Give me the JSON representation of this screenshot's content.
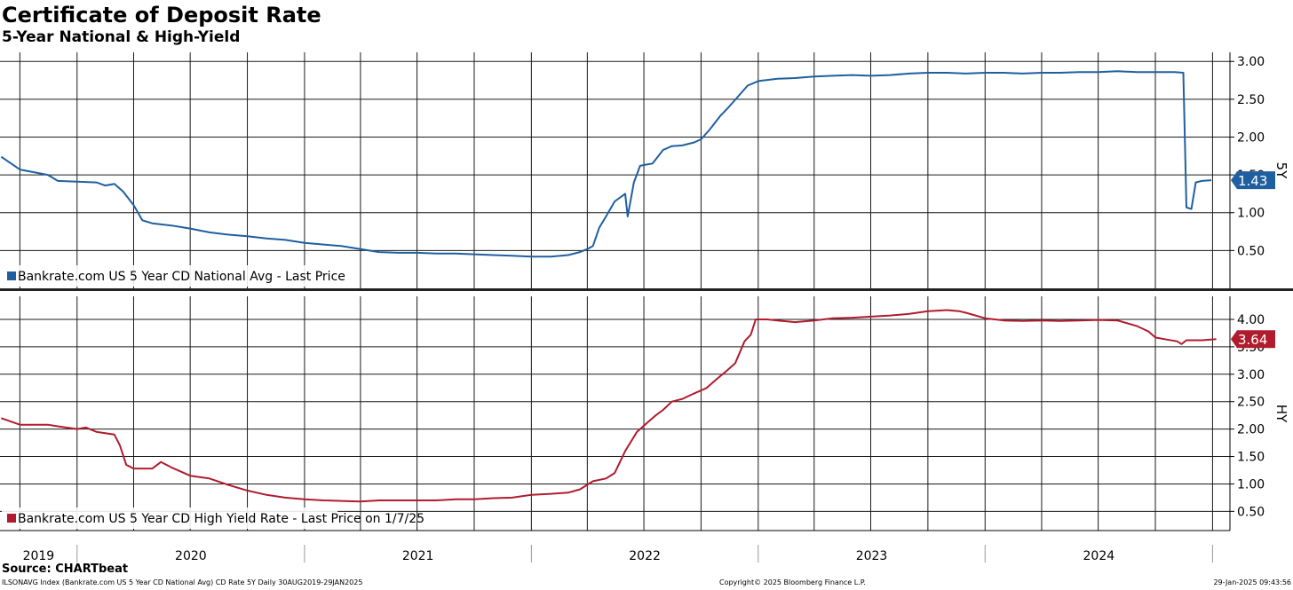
{
  "header": {
    "title": "Certificate of Deposit Rate",
    "subtitle": "5-Year National & High-Yield"
  },
  "footer": {
    "source": "Source: CHARTbeat",
    "index_info": "ILSONAVG Index (Bankrate.com US 5 Year CD National Avg) CD Rate 5Y  Daily 30AUG2019-29JAN2025",
    "copyright": "Copyright© 2025 Bloomberg Finance L.P.",
    "timestamp": "29-Jan-2025 09:43:56"
  },
  "chart_data": [
    {
      "type": "line",
      "panel": "5Y",
      "axis_side_label": "5Y",
      "color": "#1f5fa0",
      "series": [
        {
          "name": "Bankrate.com US 5 Year CD National Avg - Last Price",
          "last_value_label": "1.43",
          "points": [
            [
              "2019-09-01",
              1.74
            ],
            [
              "2019-10-01",
              1.57
            ],
            [
              "2019-11-15",
              1.5
            ],
            [
              "2019-12-01",
              1.42
            ],
            [
              "2020-01-01",
              1.41
            ],
            [
              "2020-02-01",
              1.4
            ],
            [
              "2020-02-15",
              1.36
            ],
            [
              "2020-03-01",
              1.38
            ],
            [
              "2020-03-15",
              1.28
            ],
            [
              "2020-04-01",
              1.1
            ],
            [
              "2020-04-15",
              0.9
            ],
            [
              "2020-05-01",
              0.86
            ],
            [
              "2020-06-01",
              0.83
            ],
            [
              "2020-07-01",
              0.79
            ],
            [
              "2020-08-01",
              0.74
            ],
            [
              "2020-09-01",
              0.71
            ],
            [
              "2020-10-01",
              0.69
            ],
            [
              "2020-11-01",
              0.66
            ],
            [
              "2020-12-01",
              0.64
            ],
            [
              "2021-01-01",
              0.6
            ],
            [
              "2021-02-01",
              0.58
            ],
            [
              "2021-03-01",
              0.56
            ],
            [
              "2021-04-01",
              0.52
            ],
            [
              "2021-05-01",
              0.48
            ],
            [
              "2021-06-01",
              0.47
            ],
            [
              "2021-07-01",
              0.47
            ],
            [
              "2021-08-01",
              0.46
            ],
            [
              "2021-09-01",
              0.46
            ],
            [
              "2021-10-01",
              0.45
            ],
            [
              "2021-11-01",
              0.44
            ],
            [
              "2021-12-01",
              0.43
            ],
            [
              "2022-01-01",
              0.42
            ],
            [
              "2022-02-01",
              0.42
            ],
            [
              "2022-03-01",
              0.44
            ],
            [
              "2022-03-20",
              0.48
            ],
            [
              "2022-04-01",
              0.52
            ],
            [
              "2022-04-10",
              0.56
            ],
            [
              "2022-04-20",
              0.8
            ],
            [
              "2022-05-01",
              0.95
            ],
            [
              "2022-05-15",
              1.15
            ],
            [
              "2022-06-01",
              1.25
            ],
            [
              "2022-06-05",
              0.95
            ],
            [
              "2022-06-15",
              1.4
            ],
            [
              "2022-06-25",
              1.62
            ],
            [
              "2022-07-01",
              1.63
            ],
            [
              "2022-07-15",
              1.65
            ],
            [
              "2022-08-01",
              1.83
            ],
            [
              "2022-08-15",
              1.88
            ],
            [
              "2022-09-01",
              1.89
            ],
            [
              "2022-09-20",
              1.93
            ],
            [
              "2022-10-01",
              1.97
            ],
            [
              "2022-10-15",
              2.1
            ],
            [
              "2022-11-01",
              2.28
            ],
            [
              "2022-11-15",
              2.4
            ],
            [
              "2022-12-01",
              2.55
            ],
            [
              "2022-12-15",
              2.68
            ],
            [
              "2023-01-01",
              2.74
            ],
            [
              "2023-02-01",
              2.77
            ],
            [
              "2023-03-01",
              2.78
            ],
            [
              "2023-04-01",
              2.8
            ],
            [
              "2023-05-01",
              2.81
            ],
            [
              "2023-06-01",
              2.82
            ],
            [
              "2023-07-01",
              2.81
            ],
            [
              "2023-08-01",
              2.82
            ],
            [
              "2023-09-01",
              2.84
            ],
            [
              "2023-10-01",
              2.85
            ],
            [
              "2023-11-01",
              2.85
            ],
            [
              "2023-12-01",
              2.84
            ],
            [
              "2024-01-01",
              2.85
            ],
            [
              "2024-02-01",
              2.85
            ],
            [
              "2024-03-01",
              2.84
            ],
            [
              "2024-04-01",
              2.85
            ],
            [
              "2024-05-01",
              2.85
            ],
            [
              "2024-06-01",
              2.86
            ],
            [
              "2024-07-01",
              2.86
            ],
            [
              "2024-08-01",
              2.87
            ],
            [
              "2024-09-01",
              2.86
            ],
            [
              "2024-10-01",
              2.86
            ],
            [
              "2024-11-01",
              2.86
            ],
            [
              "2024-11-15",
              2.85
            ],
            [
              "2024-11-20",
              1.07
            ],
            [
              "2024-11-28",
              1.05
            ],
            [
              "2024-12-05",
              1.4
            ],
            [
              "2024-12-15",
              1.42
            ],
            [
              "2024-12-30",
              1.43
            ]
          ]
        }
      ],
      "ylim": [
        0,
        3.12
      ],
      "yticks": [
        "3.00",
        "2.50",
        "2.00",
        "1.50",
        "1.00",
        "0.50"
      ],
      "grid": true,
      "legend": "bottom-left"
    },
    {
      "type": "line",
      "panel": "HY",
      "axis_side_label": "HY",
      "color": "#b01c2e",
      "series": [
        {
          "name": "Bankrate.com US 5 Year CD High Yield Rate - Last Price on 1/7/25",
          "last_value_label": "3.64",
          "points": [
            [
              "2019-09-01",
              2.2
            ],
            [
              "2019-10-01",
              2.08
            ],
            [
              "2019-11-15",
              2.08
            ],
            [
              "2019-12-01",
              2.05
            ],
            [
              "2020-01-01",
              2.0
            ],
            [
              "2020-01-15",
              2.03
            ],
            [
              "2020-02-01",
              1.95
            ],
            [
              "2020-03-01",
              1.9
            ],
            [
              "2020-03-10",
              1.7
            ],
            [
              "2020-03-20",
              1.35
            ],
            [
              "2020-04-01",
              1.28
            ],
            [
              "2020-05-01",
              1.28
            ],
            [
              "2020-05-15",
              1.4
            ],
            [
              "2020-06-01",
              1.3
            ],
            [
              "2020-07-01",
              1.15
            ],
            [
              "2020-08-01",
              1.1
            ],
            [
              "2020-09-01",
              0.98
            ],
            [
              "2020-10-01",
              0.88
            ],
            [
              "2020-11-01",
              0.8
            ],
            [
              "2020-12-01",
              0.75
            ],
            [
              "2021-01-01",
              0.72
            ],
            [
              "2021-02-01",
              0.7
            ],
            [
              "2021-03-01",
              0.69
            ],
            [
              "2021-04-01",
              0.68
            ],
            [
              "2021-05-01",
              0.7
            ],
            [
              "2021-06-01",
              0.7
            ],
            [
              "2021-07-01",
              0.7
            ],
            [
              "2021-08-01",
              0.7
            ],
            [
              "2021-09-01",
              0.72
            ],
            [
              "2021-10-01",
              0.72
            ],
            [
              "2021-11-01",
              0.74
            ],
            [
              "2021-12-01",
              0.75
            ],
            [
              "2022-01-01",
              0.8
            ],
            [
              "2022-02-01",
              0.82
            ],
            [
              "2022-03-01",
              0.84
            ],
            [
              "2022-03-20",
              0.9
            ],
            [
              "2022-04-10",
              1.05
            ],
            [
              "2022-05-01",
              1.1
            ],
            [
              "2022-05-15",
              1.2
            ],
            [
              "2022-06-01",
              1.6
            ],
            [
              "2022-06-20",
              1.95
            ],
            [
              "2022-07-05",
              2.1
            ],
            [
              "2022-07-20",
              2.25
            ],
            [
              "2022-08-01",
              2.35
            ],
            [
              "2022-08-15",
              2.5
            ],
            [
              "2022-09-01",
              2.55
            ],
            [
              "2022-09-20",
              2.65
            ],
            [
              "2022-10-10",
              2.75
            ],
            [
              "2022-10-25",
              2.9
            ],
            [
              "2022-11-10",
              3.05
            ],
            [
              "2022-11-25",
              3.2
            ],
            [
              "2022-12-10",
              3.6
            ],
            [
              "2022-12-20",
              3.72
            ],
            [
              "2022-12-28",
              4.0
            ],
            [
              "2023-01-15",
              4.0
            ],
            [
              "2023-02-01",
              3.98
            ],
            [
              "2023-03-01",
              3.95
            ],
            [
              "2023-04-01",
              3.98
            ],
            [
              "2023-05-01",
              4.02
            ],
            [
              "2023-06-01",
              4.03
            ],
            [
              "2023-07-01",
              4.05
            ],
            [
              "2023-08-01",
              4.07
            ],
            [
              "2023-09-01",
              4.1
            ],
            [
              "2023-10-01",
              4.15
            ],
            [
              "2023-11-01",
              4.17
            ],
            [
              "2023-11-20",
              4.15
            ],
            [
              "2023-12-01",
              4.12
            ],
            [
              "2024-01-01",
              4.02
            ],
            [
              "2024-02-01",
              3.98
            ],
            [
              "2024-03-01",
              3.97
            ],
            [
              "2024-04-01",
              3.98
            ],
            [
              "2024-05-01",
              3.97
            ],
            [
              "2024-06-01",
              3.98
            ],
            [
              "2024-07-01",
              3.99
            ],
            [
              "2024-08-01",
              3.98
            ],
            [
              "2024-09-01",
              3.88
            ],
            [
              "2024-09-20",
              3.78
            ],
            [
              "2024-10-01",
              3.67
            ],
            [
              "2024-10-20",
              3.63
            ],
            [
              "2024-11-05",
              3.6
            ],
            [
              "2024-11-12",
              3.55
            ],
            [
              "2024-11-20",
              3.62
            ],
            [
              "2024-12-15",
              3.62
            ],
            [
              "2025-01-07",
              3.64
            ]
          ]
        }
      ],
      "ylim": [
        0.15,
        4.42
      ],
      "yticks": [
        "4.00",
        "3.50",
        "3.00",
        "2.50",
        "2.00",
        "1.50",
        "1.00",
        "0.50"
      ],
      "grid": true,
      "legend": "bottom-left"
    }
  ],
  "x_axis": {
    "labels": [
      "2019",
      "2020",
      "2021",
      "2022",
      "2023",
      "2024"
    ],
    "range": [
      "2019-08-30",
      "2025-01-29"
    ]
  }
}
